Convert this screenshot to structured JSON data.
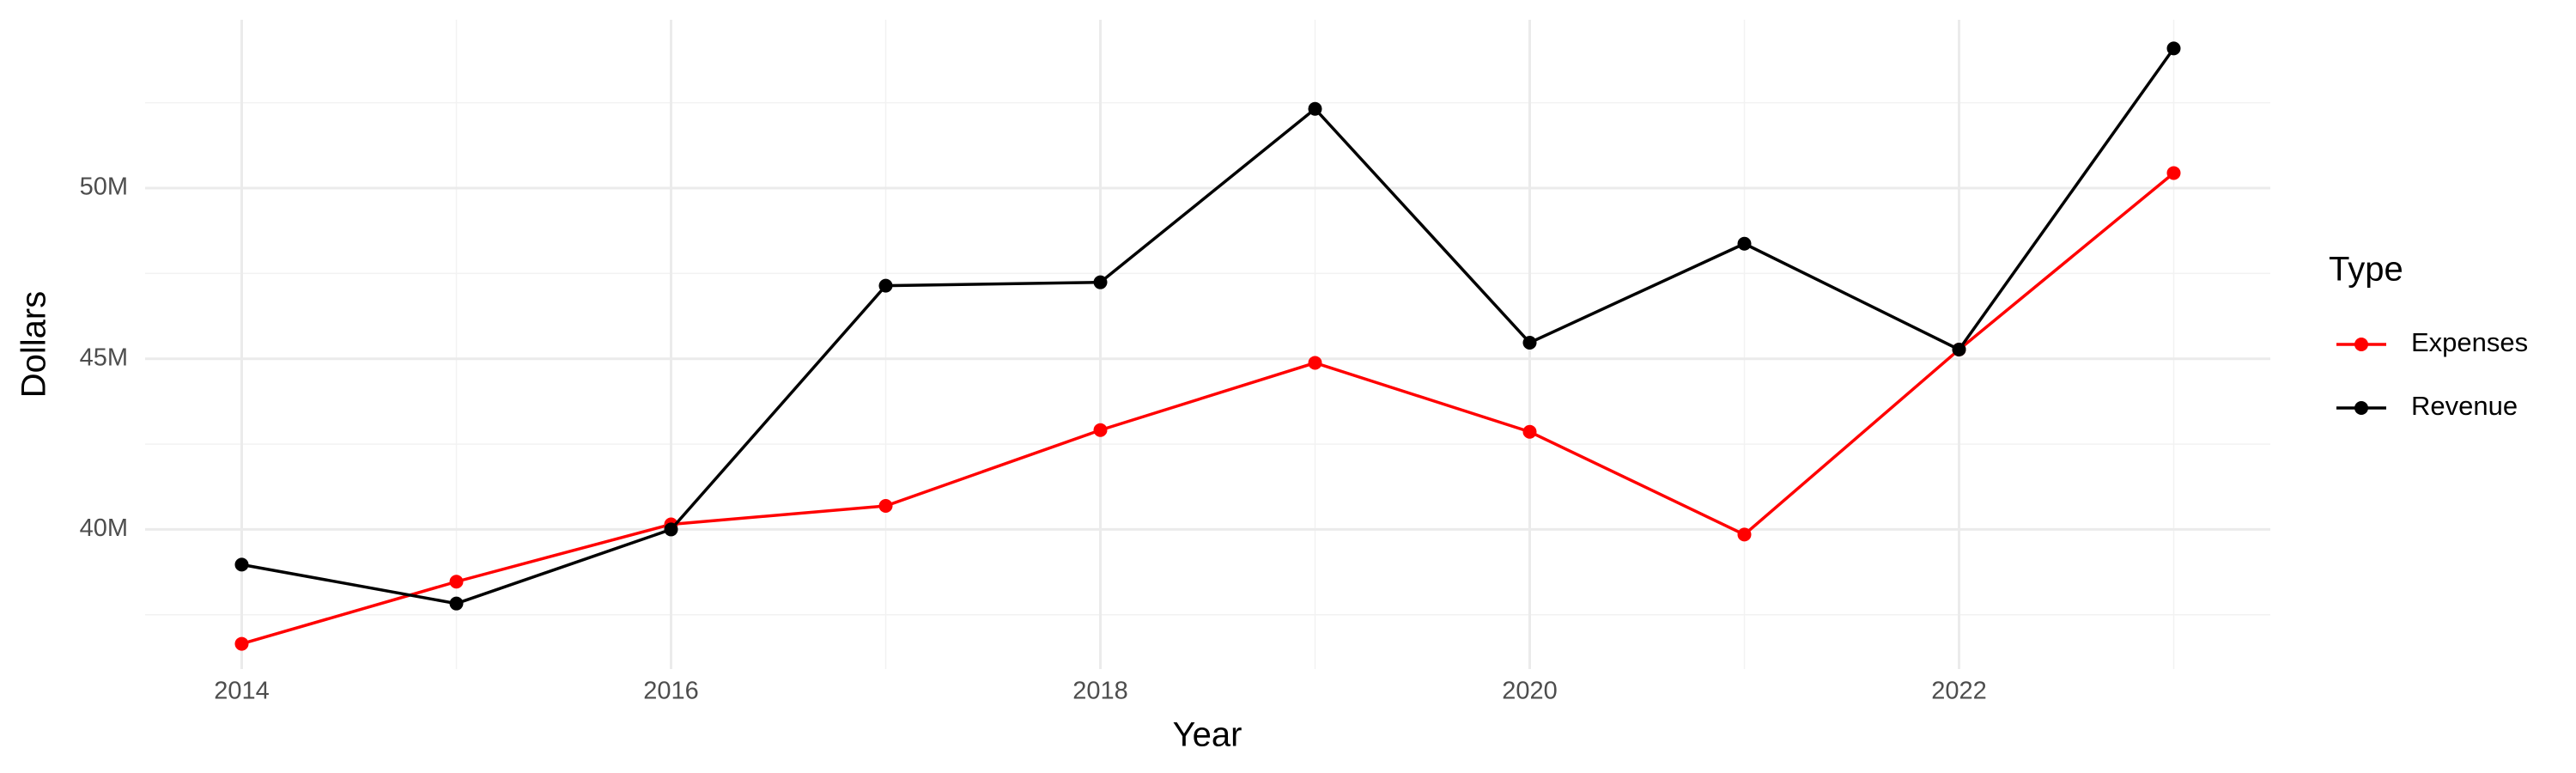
{
  "chart_data": {
    "type": "line",
    "x_label": "Year",
    "y_label": "Dollars",
    "legend_title": "Type",
    "legend_position": "right",
    "grid": true,
    "x": [
      2014,
      2015,
      2016,
      2017,
      2018,
      2019,
      2020,
      2021,
      2022,
      2023
    ],
    "series": [
      {
        "name": "Expenses",
        "color": "#ff0000",
        "values": [
          36650000,
          38470000,
          40150000,
          40690000,
          42910000,
          44880000,
          42860000,
          39850000,
          45270000,
          50440000
        ]
      },
      {
        "name": "Revenue",
        "color": "#000000",
        "values": [
          38970000,
          37830000,
          40000000,
          47140000,
          47240000,
          52320000,
          45470000,
          48370000,
          45270000,
          54090000
        ]
      }
    ],
    "xlim": [
      2013.55,
      2023.45
    ],
    "xticks": [
      2014,
      2016,
      2018,
      2020,
      2022
    ],
    "ylim": [
      35910000,
      54930000
    ],
    "yticks": [
      {
        "value": 40000000,
        "label": "40M"
      },
      {
        "value": 45000000,
        "label": "45M"
      },
      {
        "value": 50000000,
        "label": "50M"
      }
    ]
  }
}
